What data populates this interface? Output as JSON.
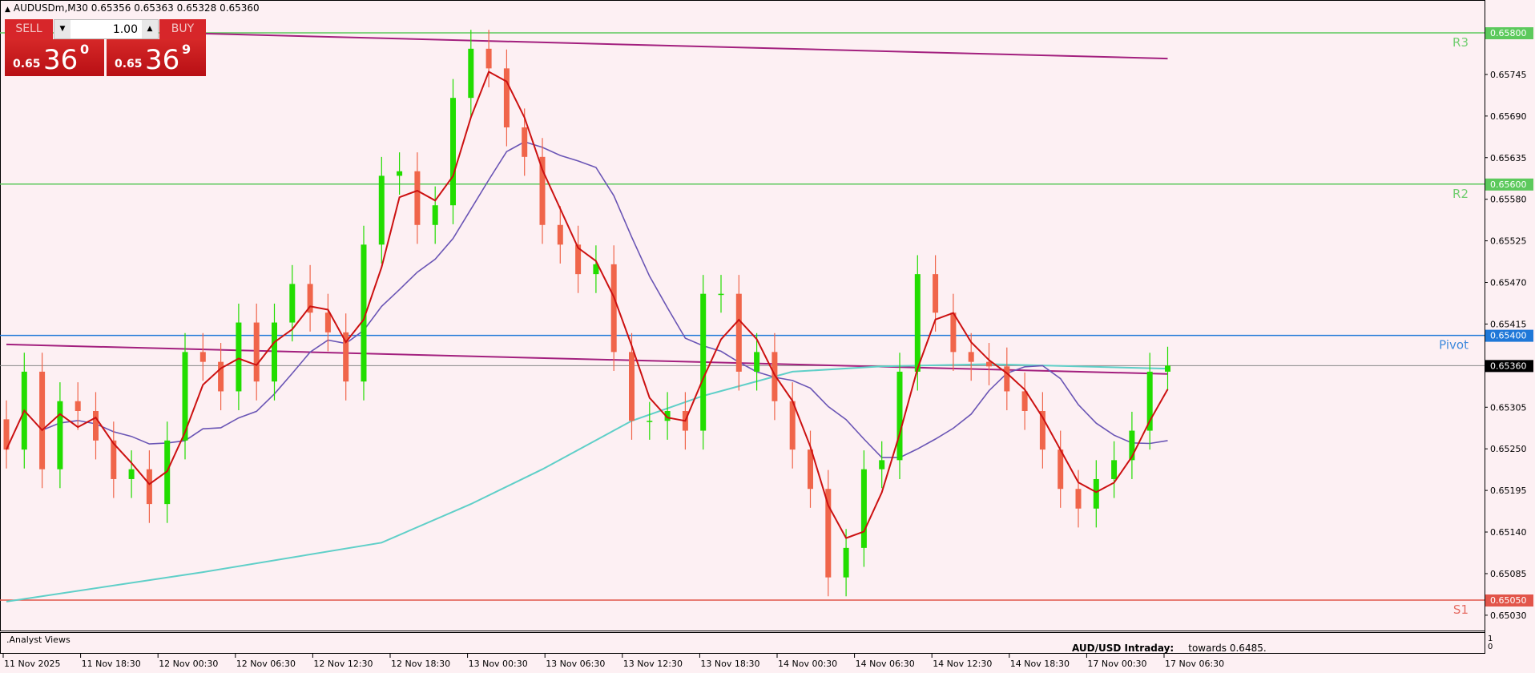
{
  "header": {
    "symbol": "AUDUSDm,M30",
    "prices": "0.65356 0.65363 0.65328 0.65360"
  },
  "trade_panel": {
    "sell_label": "SELL",
    "buy_label": "BUY",
    "lot_value": "1.00",
    "sell_price": {
      "prefix": "0.65",
      "big": "36",
      "sup": "0"
    },
    "buy_price": {
      "prefix": "0.65",
      "big": "36",
      "sup": "9"
    }
  },
  "colors": {
    "background": "#fdf0f3",
    "bull": "#22dd00",
    "bear": "#f0654a",
    "fast_ma": "#cc1111",
    "mid_ma": "#6a55b5",
    "slow_ma": "#5fcfc8",
    "long_ma": "#a3207e",
    "resistance": "#5cc95c",
    "pivot": "#1f78d8",
    "support": "#e2554a"
  },
  "subwindow": {
    "name": ".Analyst Views",
    "headline": "AUD/USD Intraday:",
    "text": "towards 0.6485.",
    "scale": [
      "1",
      "0"
    ]
  },
  "chart_data": {
    "type": "candlestick",
    "symbol": "AUDUSDm",
    "timeframe": "M30",
    "ylim": [
      0.6501,
      0.6584
    ],
    "y_ticks": [
      "0.65745",
      "0.65690",
      "0.65635",
      "0.65580",
      "0.65525",
      "0.65470",
      "0.65415",
      "0.65305",
      "0.65250",
      "0.65195",
      "0.65140",
      "0.65085",
      "0.65030"
    ],
    "x_ticks": [
      "11 Nov 2025",
      "11 Nov 18:30",
      "12 Nov 00:30",
      "12 Nov 06:30",
      "12 Nov 12:30",
      "12 Nov 18:30",
      "13 Nov 00:30",
      "13 Nov 06:30",
      "13 Nov 12:30",
      "13 Nov 18:30",
      "14 Nov 00:30",
      "14 Nov 06:30",
      "14 Nov 12:30",
      "14 Nov 18:30",
      "17 Nov 00:30",
      "17 Nov 06:30"
    ],
    "closes": [
      0.65249,
      0.65352,
      0.65223,
      0.65313,
      0.653,
      0.65261,
      0.6521,
      0.65223,
      0.65177,
      0.65261,
      0.65378,
      0.65365,
      0.65326,
      0.65417,
      0.65339,
      0.65417,
      0.65468,
      0.6543,
      0.65404,
      0.65339,
      0.6552,
      0.65611,
      0.65617,
      0.65546,
      0.65572,
      0.65714,
      0.65779,
      0.65753,
      0.65675,
      0.65636,
      0.65546,
      0.6552,
      0.65481,
      0.65494,
      0.65378,
      0.65287,
      0.65287,
      0.653,
      0.65274,
      0.65455,
      0.65455,
      0.65352,
      0.65378,
      0.65313,
      0.65249,
      0.65197,
      0.6508,
      0.65119,
      0.65223,
      0.65235,
      0.65352,
      0.65481,
      0.6543,
      0.65378,
      0.65365,
      0.65359,
      0.65326,
      0.653,
      0.65249,
      0.65197,
      0.65171,
      0.6521,
      0.65235,
      0.65274,
      0.65352,
      0.6536
    ],
    "slow_ma": [
      [
        0,
        0.65048
      ],
      [
        11,
        0.65087
      ],
      [
        21,
        0.65126
      ],
      [
        26,
        0.65177
      ],
      [
        30,
        0.65223
      ],
      [
        35,
        0.65287
      ],
      [
        39,
        0.6532
      ],
      [
        44,
        0.65352
      ],
      [
        49,
        0.65359
      ],
      [
        55,
        0.65362
      ],
      [
        65,
        0.65356
      ]
    ],
    "long_ma_upper": [
      [
        11,
        0.65799
      ],
      [
        65,
        0.65766
      ]
    ],
    "long_ma_lower": [
      [
        0,
        0.65388
      ],
      [
        65,
        0.65349
      ]
    ],
    "levels": [
      {
        "name": "R3",
        "price": "0.65800"
      },
      {
        "name": "R2",
        "price": "0.65600"
      },
      {
        "name": "Pivot",
        "price": "0.65400"
      },
      {
        "name": "S1",
        "price": "0.65050"
      }
    ],
    "current_price": "0.65360"
  }
}
